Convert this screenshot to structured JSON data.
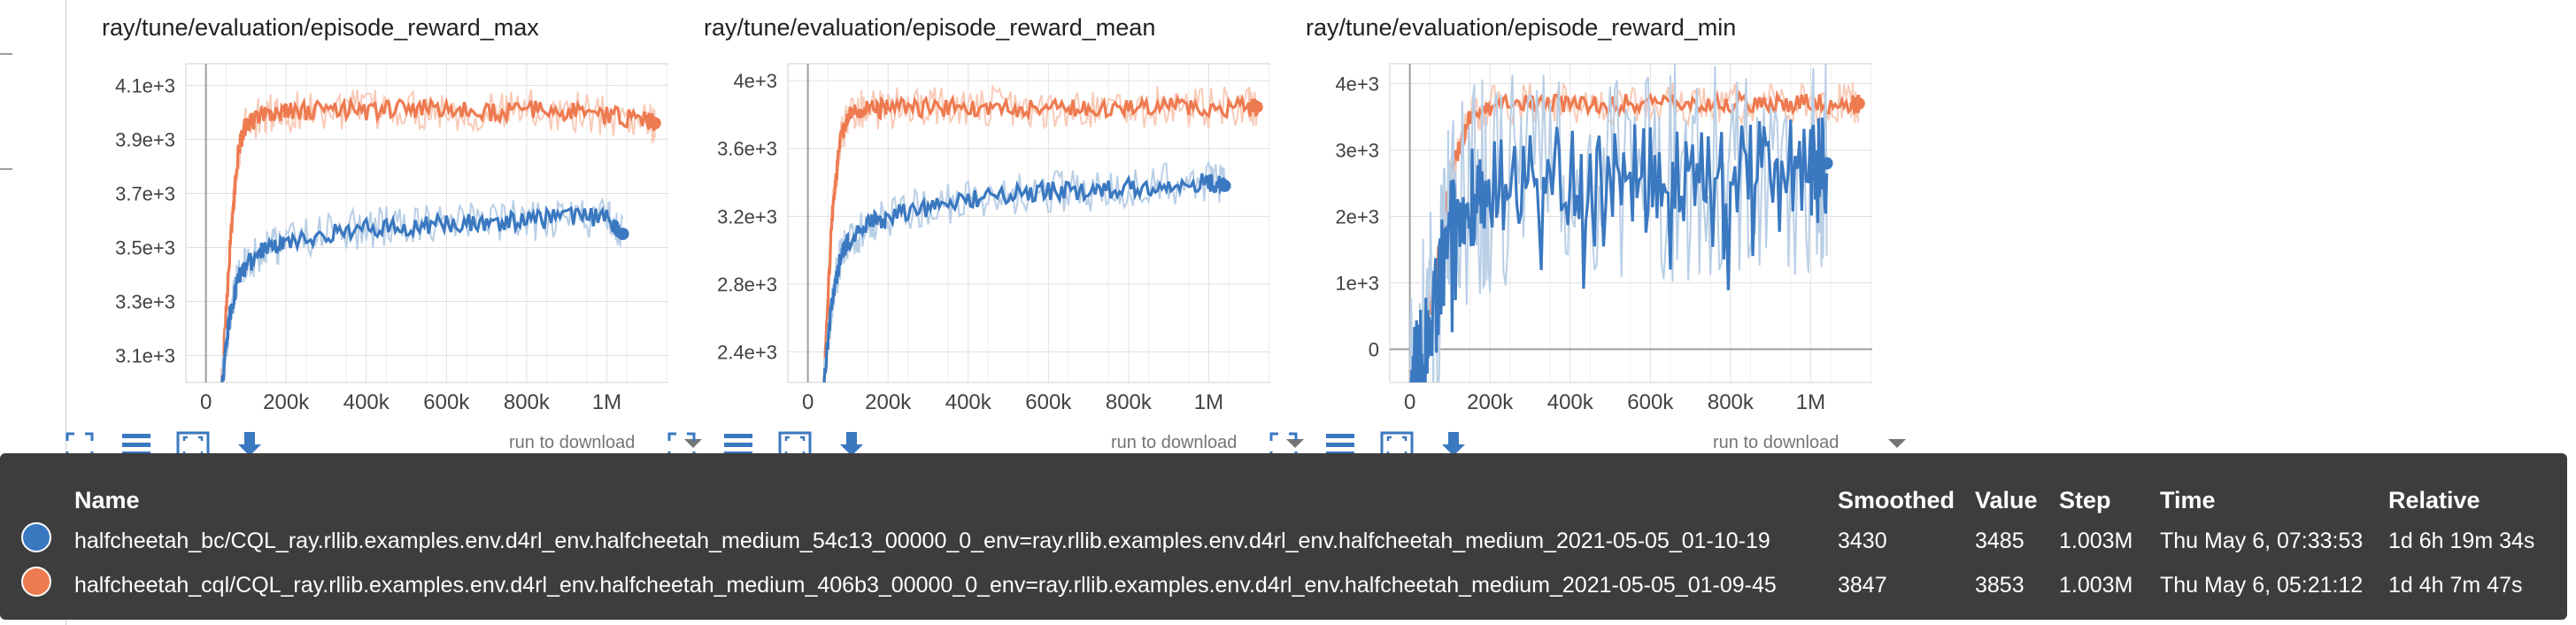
{
  "colors": {
    "blue": "#3a78c0",
    "orange": "#ee7a50",
    "blue_light": "#b9cfe6",
    "orange_light": "#f8cbb8"
  },
  "toolbar": {
    "icons": [
      "fullscreen-icon",
      "data-table-icon",
      "fit-domain-icon",
      "download-icon"
    ],
    "run_select_label": "run to download"
  },
  "tooltip": {
    "headers": {
      "name": "Name",
      "smoothed": "Smoothed",
      "value": "Value",
      "step": "Step",
      "time": "Time",
      "relative": "Relative"
    },
    "rows": [
      {
        "color": "#3a78c0",
        "name": "halfcheetah_bc/CQL_ray.rllib.examples.env.d4rl_env.halfcheetah_medium_54c13_00000_0_env=ray.rllib.examples.env.d4rl_env.halfcheetah_medium_2021-05-05_01-10-19",
        "smoothed": "3430",
        "value": "3485",
        "step": "1.003M",
        "time": "Thu May 6, 07:33:53",
        "relative": "1d 6h 19m 34s"
      },
      {
        "color": "#ee7a50",
        "name": "halfcheetah_cql/CQL_ray.rllib.examples.env.d4rl_env.halfcheetah_medium_406b3_00000_0_env=ray.rllib.examples.env.d4rl_env.halfcheetah_medium_2021-05-05_01-09-45",
        "smoothed": "3847",
        "value": "3853",
        "step": "1.003M",
        "time": "Thu May 6, 05:21:12",
        "relative": "1d 4h 7m 47s"
      }
    ]
  },
  "chart_data": [
    {
      "type": "line",
      "title": "ray/tune/evaluation/episode_reward_max",
      "xlabel": "",
      "ylabel": "",
      "xlim": [
        -50000,
        1200000
      ],
      "ylim": [
        3000,
        4180
      ],
      "xticks": [
        0,
        200000,
        400000,
        600000,
        800000,
        1000000
      ],
      "xtick_labels": [
        "0",
        "200k",
        "400k",
        "600k",
        "800k",
        "1M"
      ],
      "yticks": [
        3100,
        3300,
        3500,
        3700,
        3900,
        4100
      ],
      "ytick_labels": [
        "3.1e+3",
        "3.3e+3",
        "3.5e+3",
        "3.7e+3",
        "3.9e+3",
        "4.1e+3"
      ],
      "series": [
        {
          "color": "orange",
          "x": [
            40000,
            60000,
            80000,
            100000,
            150000,
            200000,
            300000,
            400000,
            500000,
            600000,
            700000,
            800000,
            900000,
            1000000,
            1100000,
            1120000
          ],
          "y": [
            3000,
            3500,
            3850,
            3960,
            3990,
            4000,
            4010,
            4005,
            4015,
            4010,
            4000,
            4010,
            4005,
            3990,
            3970,
            3960
          ]
        },
        {
          "color": "blue",
          "x": [
            40000,
            60000,
            80000,
            100000,
            150000,
            200000,
            300000,
            400000,
            500000,
            600000,
            700000,
            800000,
            900000,
            1000000,
            1040000
          ],
          "y": [
            3000,
            3250,
            3380,
            3430,
            3500,
            3520,
            3550,
            3570,
            3580,
            3590,
            3590,
            3600,
            3610,
            3610,
            3550
          ]
        }
      ]
    },
    {
      "type": "line",
      "title": "ray/tune/evaluation/episode_reward_mean",
      "xlabel": "",
      "ylabel": "",
      "xlim": [
        -50000,
        1200000
      ],
      "ylim": [
        2220,
        4100
      ],
      "xticks": [
        0,
        200000,
        400000,
        600000,
        800000,
        1000000
      ],
      "xtick_labels": [
        "0",
        "200k",
        "400k",
        "600k",
        "800k",
        "1M"
      ],
      "yticks": [
        2400,
        2800,
        3200,
        3600,
        4000
      ],
      "ytick_labels": [
        "2.4e+3",
        "2.8e+3",
        "3.2e+3",
        "3.6e+3",
        "4e+3"
      ],
      "series": [
        {
          "color": "orange",
          "x": [
            40000,
            60000,
            80000,
            100000,
            150000,
            200000,
            300000,
            400000,
            500000,
            600000,
            700000,
            800000,
            900000,
            1000000,
            1100000,
            1120000
          ],
          "y": [
            2220,
            3200,
            3650,
            3800,
            3830,
            3840,
            3840,
            3845,
            3840,
            3845,
            3840,
            3840,
            3845,
            3840,
            3840,
            3845
          ]
        },
        {
          "color": "blue",
          "x": [
            40000,
            60000,
            80000,
            100000,
            150000,
            200000,
            300000,
            400000,
            500000,
            600000,
            700000,
            800000,
            900000,
            1000000,
            1040000
          ],
          "y": [
            2220,
            2700,
            2950,
            3050,
            3150,
            3200,
            3250,
            3300,
            3330,
            3350,
            3350,
            3370,
            3390,
            3400,
            3380
          ]
        }
      ]
    },
    {
      "type": "line",
      "title": "ray/tune/evaluation/episode_reward_min",
      "xlabel": "",
      "ylabel": "",
      "xlim": [
        -50000,
        1200000
      ],
      "ylim": [
        -500,
        4300
      ],
      "xticks": [
        0,
        200000,
        400000,
        600000,
        800000,
        1000000
      ],
      "xtick_labels": [
        "0",
        "200k",
        "400k",
        "600k",
        "800k",
        "1M"
      ],
      "yticks": [
        0,
        1000,
        2000,
        3000,
        4000
      ],
      "ytick_labels": [
        "0",
        "1e+3",
        "2e+3",
        "3e+3",
        "4e+3"
      ],
      "series": [
        {
          "color": "orange",
          "x": [
            0,
            30000,
            60000,
            100000,
            150000,
            200000,
            300000,
            400000,
            500000,
            600000,
            700000,
            800000,
            900000,
            1000000,
            1100000,
            1120000
          ],
          "y": [
            -400,
            0,
            900,
            2600,
            3500,
            3650,
            3700,
            3700,
            3700,
            3700,
            3700,
            3700,
            3700,
            3700,
            3700,
            3700
          ]
        },
        {
          "color": "blue",
          "x": [
            0,
            30000,
            60000,
            100000,
            150000,
            200000,
            300000,
            400000,
            500000,
            600000,
            700000,
            800000,
            900000,
            1000000,
            1040000
          ],
          "y": [
            -400,
            0,
            600,
            1800,
            2400,
            2500,
            2550,
            2600,
            2650,
            2650,
            2700,
            2700,
            2700,
            2750,
            2800
          ]
        }
      ]
    }
  ]
}
